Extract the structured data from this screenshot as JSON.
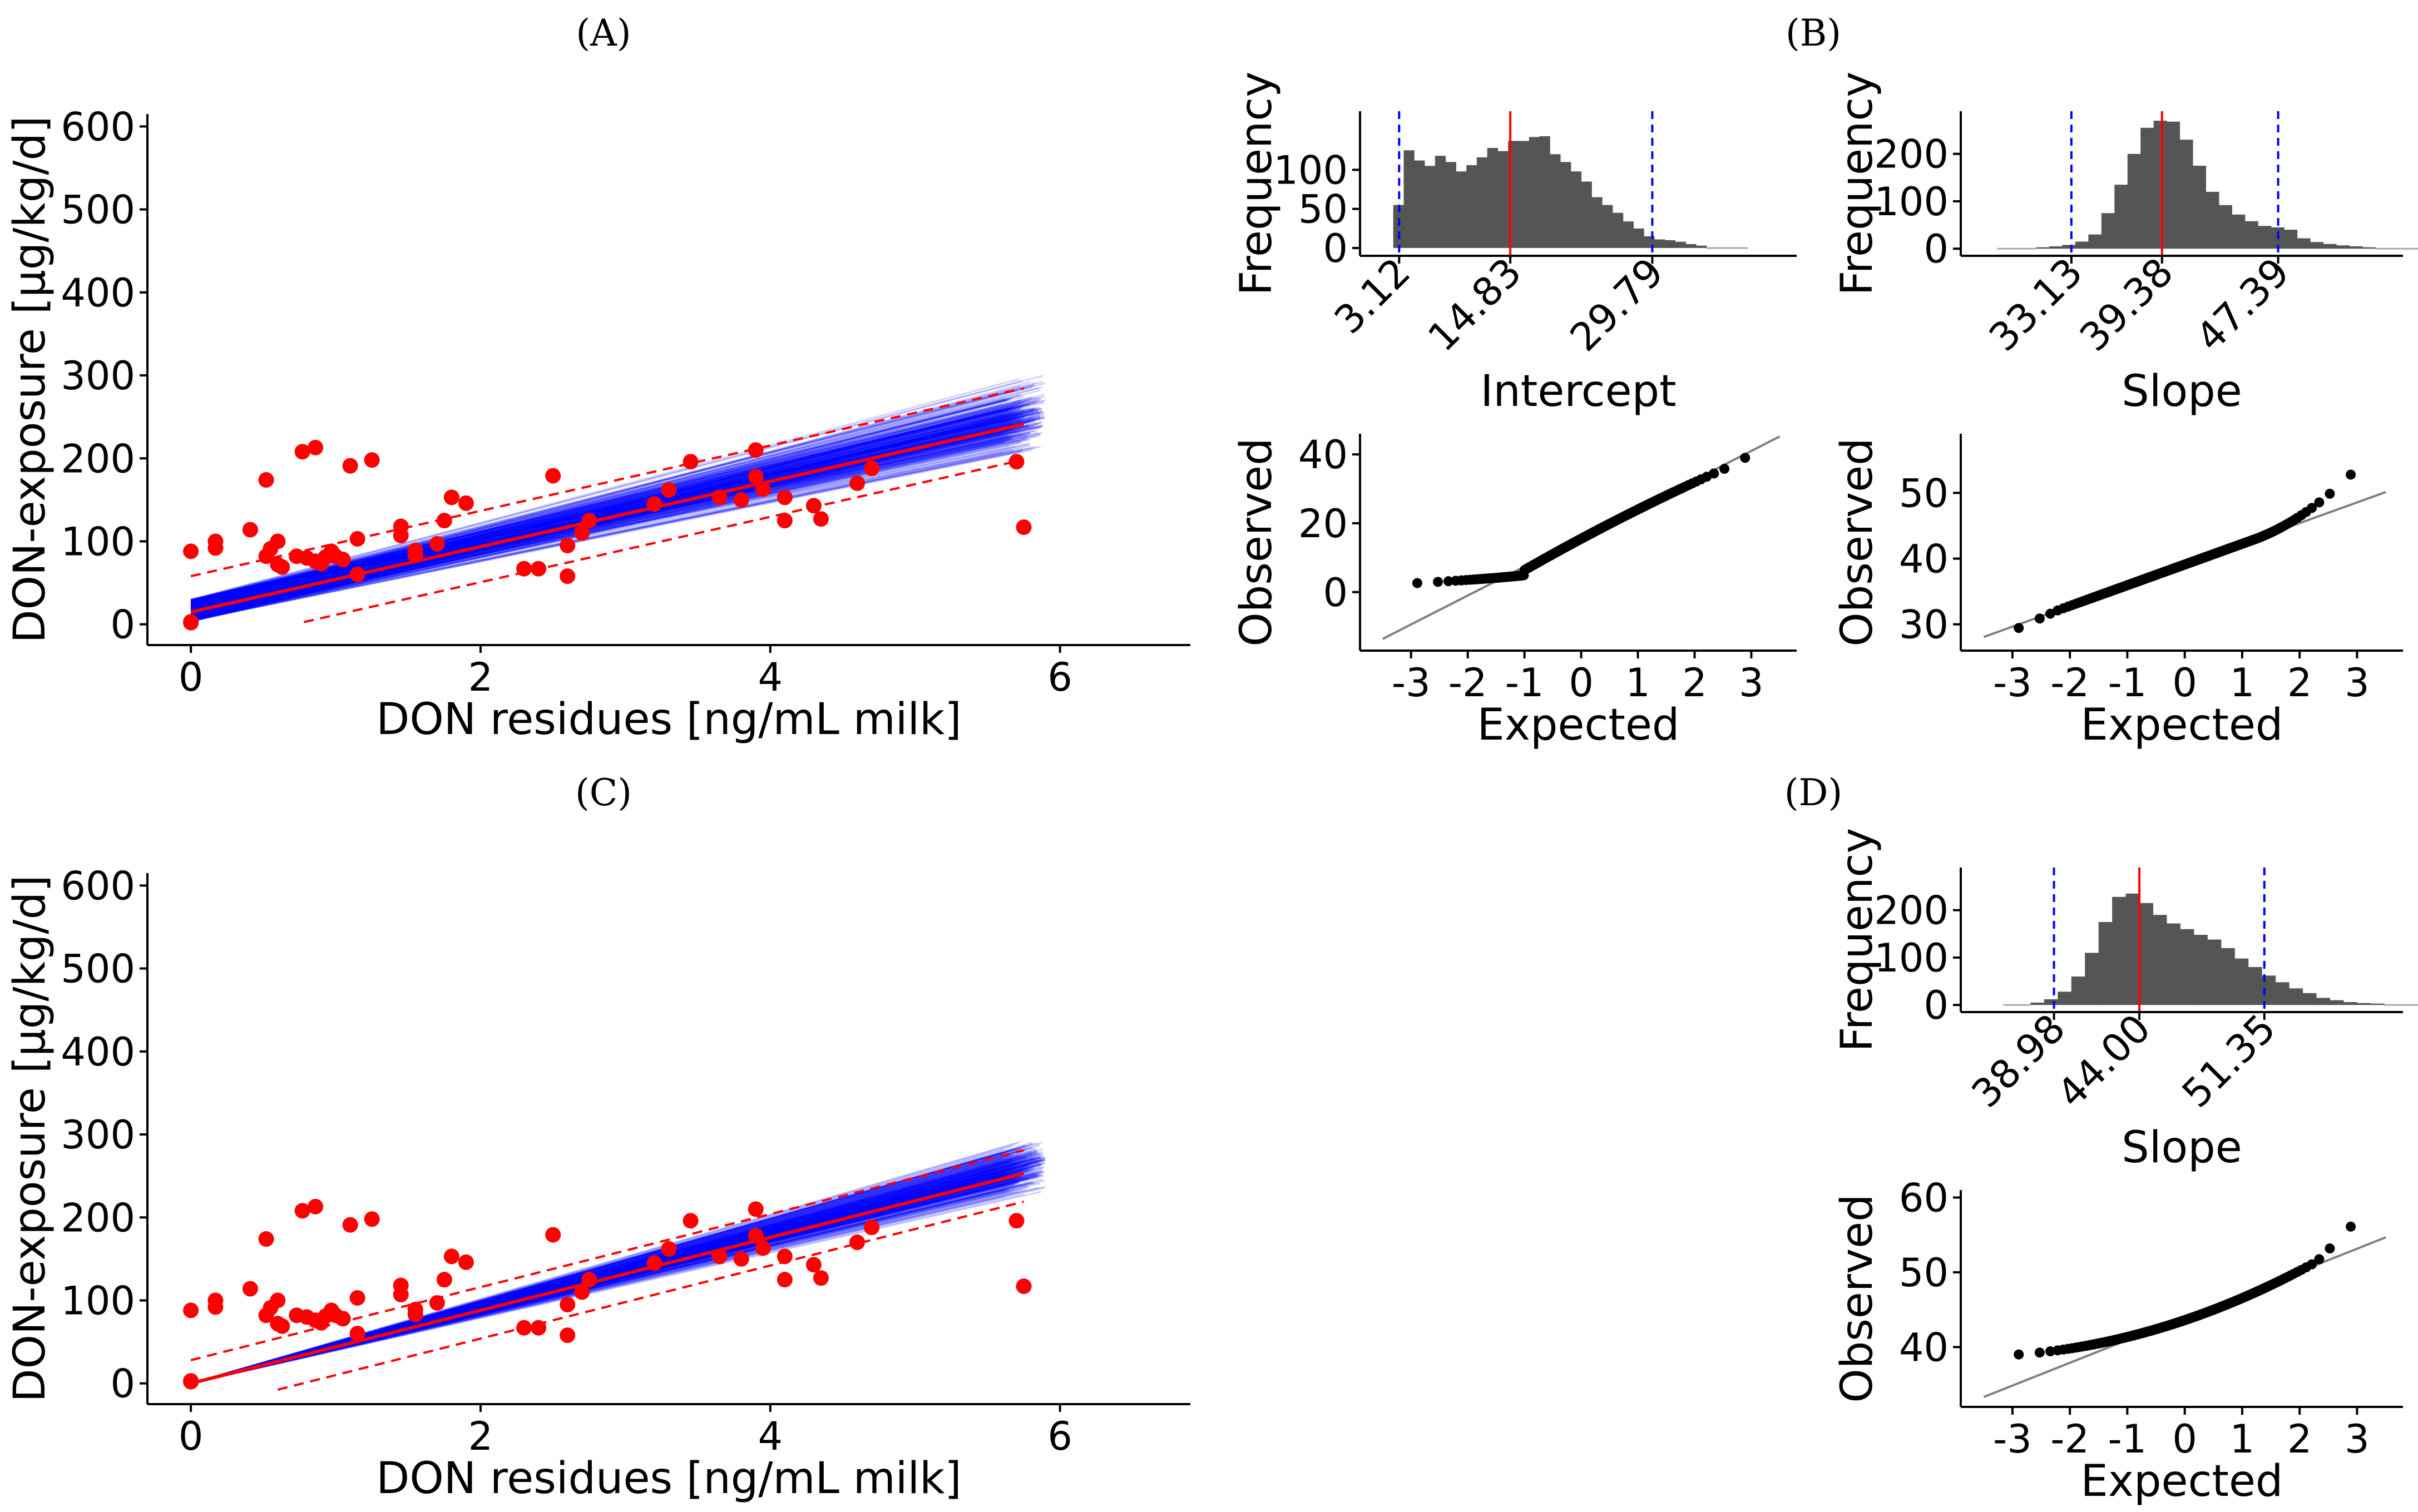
{
  "figure_labels": {
    "A": "(A)",
    "B": "(B)",
    "C": "(C)",
    "D": "(D)"
  },
  "colors": {
    "points": "#ff0000",
    "fit": "#ff0000",
    "band": "#ff0000",
    "bootstrap": "#0000ff",
    "hist_bar": "#555555",
    "median_line": "#ff0000",
    "ci_line": "#0000ff",
    "qq_points": "#000000",
    "qq_ref": "#7f7f7f"
  },
  "chart_data": [
    {
      "id": "A",
      "type": "scatter",
      "title": "(A)",
      "xlabel": "DON residues [ng/mL milk]",
      "ylabel": "DON-exposure [µg/kg/d]",
      "xlim": [
        -0.3,
        6.9
      ],
      "ylim": [
        -25,
        615
      ],
      "xticks": [
        "0",
        "2",
        "4",
        "6"
      ],
      "xtick_values": [
        0,
        2,
        4,
        6
      ],
      "yticks": [
        "0",
        "100",
        "200",
        "300",
        "400",
        "500",
        "600"
      ],
      "ytick_values": [
        0,
        100,
        200,
        300,
        400,
        500,
        600
      ],
      "points": [
        [
          0,
          3
        ],
        [
          0,
          2
        ],
        [
          0,
          88
        ],
        [
          0.17,
          92
        ],
        [
          0.17,
          100
        ],
        [
          0.41,
          114
        ],
        [
          0.52,
          174
        ],
        [
          0.52,
          82
        ],
        [
          0.55,
          91
        ],
        [
          0.6,
          100
        ],
        [
          0.6,
          72
        ],
        [
          0.63,
          69
        ],
        [
          0.73,
          82
        ],
        [
          0.77,
          208
        ],
        [
          0.8,
          80
        ],
        [
          0.86,
          213
        ],
        [
          0.86,
          76
        ],
        [
          0.9,
          73
        ],
        [
          0.93,
          81
        ],
        [
          0.97,
          88
        ],
        [
          1.0,
          82
        ],
        [
          1.05,
          78
        ],
        [
          1.1,
          191
        ],
        [
          1.15,
          103
        ],
        [
          1.15,
          60
        ],
        [
          1.25,
          198
        ],
        [
          1.45,
          118
        ],
        [
          1.45,
          107
        ],
        [
          1.55,
          89
        ],
        [
          1.55,
          83
        ],
        [
          1.7,
          97
        ],
        [
          1.75,
          125
        ],
        [
          1.8,
          153
        ],
        [
          1.9,
          146
        ],
        [
          2.3,
          67
        ],
        [
          2.4,
          67
        ],
        [
          2.5,
          179
        ],
        [
          2.6,
          58
        ],
        [
          2.6,
          95
        ],
        [
          2.7,
          110
        ],
        [
          2.75,
          125
        ],
        [
          3.2,
          145
        ],
        [
          3.3,
          162
        ],
        [
          3.45,
          196
        ],
        [
          3.65,
          153
        ],
        [
          3.8,
          150
        ],
        [
          3.9,
          178
        ],
        [
          3.9,
          210
        ],
        [
          3.95,
          163
        ],
        [
          4.1,
          153
        ],
        [
          4.1,
          125
        ],
        [
          4.3,
          143
        ],
        [
          4.35,
          127
        ],
        [
          4.6,
          170
        ],
        [
          4.7,
          188
        ],
        [
          5.7,
          196
        ],
        [
          5.75,
          117
        ]
      ],
      "fit": {
        "intercept": 14.83,
        "slope": 39.38
      },
      "band": {
        "lower_intercept": -28,
        "upper_intercept": 58,
        "lower_x0": 0.78
      },
      "bootstrap": {
        "intercept_range": [
          3.12,
          29.79
        ],
        "slope_range": [
          33.13,
          47.39
        ]
      }
    },
    {
      "id": "B-hist-intercept",
      "type": "bar",
      "xlabel": "Intercept",
      "ylabel": "Frequency",
      "xlim": [
        -1,
        45
      ],
      "ylim": [
        -10,
        175
      ],
      "xticks": [
        "3.12",
        "14.83",
        "29.79"
      ],
      "xtick_values": [
        3.12,
        14.83,
        29.79
      ],
      "yticks": [
        "0",
        "50",
        "100"
      ],
      "ytick_values": [
        0,
        50,
        100
      ],
      "bin_start": 2.5,
      "bin_width": 1.1,
      "values": [
        55,
        125,
        112,
        105,
        118,
        110,
        98,
        106,
        116,
        128,
        124,
        137,
        137,
        142,
        143,
        120,
        110,
        98,
        85,
        65,
        55,
        45,
        34,
        25,
        15,
        11,
        10,
        8,
        5,
        3,
        2,
        1,
        1,
        1,
        0,
        0,
        0,
        0
      ],
      "median": 14.83,
      "ci": [
        3.12,
        29.79
      ]
    },
    {
      "id": "B-hist-slope",
      "type": "bar",
      "xlabel": "Slope",
      "ylabel": "Frequency",
      "xlim": [
        25.5,
        56
      ],
      "ylim": [
        -15,
        290
      ],
      "xticks": [
        "33.13",
        "39.38",
        "47.39"
      ],
      "xtick_values": [
        33.13,
        39.38,
        47.39
      ],
      "yticks": [
        "0",
        "100",
        "200"
      ],
      "ytick_values": [
        0,
        100,
        200
      ],
      "bin_start": 28,
      "bin_width": 0.9,
      "values": [
        1,
        1,
        2,
        3,
        5,
        8,
        15,
        30,
        75,
        135,
        200,
        255,
        270,
        268,
        230,
        175,
        120,
        92,
        72,
        58,
        48,
        45,
        40,
        22,
        14,
        10,
        7,
        5,
        3,
        2,
        2,
        1,
        1
      ],
      "median": 39.38,
      "ci": [
        33.13,
        47.39
      ]
    },
    {
      "id": "B-qq-intercept",
      "type": "scatter",
      "xlabel": "Expected",
      "ylabel": "Observed",
      "xlim": [
        -3.9,
        3.8
      ],
      "ylim": [
        -17,
        46
      ],
      "xticks": [
        "-3",
        "-2",
        "-1",
        "0",
        "1",
        "2",
        "3"
      ],
      "xtick_values": [
        -3,
        -2,
        -1,
        0,
        1,
        2,
        3
      ],
      "yticks": [
        "0",
        "20",
        "40"
      ],
      "ytick_values": [
        0,
        20,
        40
      ],
      "reference_line": {
        "intercept": 15.8,
        "slope": 8.4,
        "x_range": [
          -3.5,
          3.5
        ]
      }
    },
    {
      "id": "B-qq-slope",
      "type": "scatter",
      "xlabel": "Expected",
      "ylabel": "Observed",
      "xlim": [
        -3.9,
        3.8
      ],
      "ylim": [
        26,
        59
      ],
      "xticks": [
        "-3",
        "-2",
        "-1",
        "0",
        "1",
        "2",
        "3"
      ],
      "xtick_values": [
        -3,
        -2,
        -1,
        0,
        1,
        2,
        3
      ],
      "yticks": [
        "30",
        "40",
        "50"
      ],
      "ytick_values": [
        30,
        40,
        50
      ],
      "reference_line": {
        "intercept": 39.1,
        "slope": 3.15,
        "x_range": [
          -3.5,
          3.5
        ]
      }
    },
    {
      "id": "C",
      "type": "scatter",
      "title": "(C)",
      "xlabel": "DON residues [ng/mL milk]",
      "ylabel": "DON-exposure [µg/kg/d]",
      "xlim": [
        -0.3,
        6.9
      ],
      "ylim": [
        -25,
        615
      ],
      "xticks": [
        "0",
        "2",
        "4",
        "6"
      ],
      "xtick_values": [
        0,
        2,
        4,
        6
      ],
      "yticks": [
        "0",
        "100",
        "200",
        "300",
        "400",
        "500",
        "600"
      ],
      "ytick_values": [
        0,
        100,
        200,
        300,
        400,
        500,
        600
      ],
      "points": [
        [
          0,
          3
        ],
        [
          0,
          2
        ],
        [
          0,
          88
        ],
        [
          0.17,
          92
        ],
        [
          0.17,
          100
        ],
        [
          0.41,
          114
        ],
        [
          0.52,
          174
        ],
        [
          0.52,
          82
        ],
        [
          0.55,
          91
        ],
        [
          0.6,
          100
        ],
        [
          0.6,
          72
        ],
        [
          0.63,
          69
        ],
        [
          0.73,
          82
        ],
        [
          0.77,
          208
        ],
        [
          0.8,
          80
        ],
        [
          0.86,
          213
        ],
        [
          0.86,
          76
        ],
        [
          0.9,
          73
        ],
        [
          0.93,
          81
        ],
        [
          0.97,
          88
        ],
        [
          1.0,
          82
        ],
        [
          1.05,
          78
        ],
        [
          1.1,
          191
        ],
        [
          1.15,
          103
        ],
        [
          1.15,
          60
        ],
        [
          1.25,
          198
        ],
        [
          1.45,
          118
        ],
        [
          1.45,
          107
        ],
        [
          1.55,
          89
        ],
        [
          1.55,
          83
        ],
        [
          1.7,
          97
        ],
        [
          1.75,
          125
        ],
        [
          1.8,
          153
        ],
        [
          1.9,
          146
        ],
        [
          2.3,
          67
        ],
        [
          2.4,
          67
        ],
        [
          2.5,
          179
        ],
        [
          2.6,
          58
        ],
        [
          2.6,
          95
        ],
        [
          2.7,
          110
        ],
        [
          2.75,
          125
        ],
        [
          3.2,
          145
        ],
        [
          3.3,
          162
        ],
        [
          3.45,
          196
        ],
        [
          3.65,
          153
        ],
        [
          3.8,
          150
        ],
        [
          3.9,
          178
        ],
        [
          3.9,
          210
        ],
        [
          3.95,
          163
        ],
        [
          4.1,
          153
        ],
        [
          4.1,
          125
        ],
        [
          4.3,
          143
        ],
        [
          4.35,
          127
        ],
        [
          4.6,
          170
        ],
        [
          4.7,
          188
        ],
        [
          5.7,
          196
        ],
        [
          5.75,
          117
        ]
      ],
      "fit": {
        "intercept": 0,
        "slope": 44.0
      },
      "band": {
        "lower_intercept": -34,
        "upper_intercept": 28,
        "lower_x0": 0.6
      },
      "bootstrap": {
        "intercept_range": [
          0,
          0
        ],
        "slope_range": [
          38.98,
          51.35
        ]
      }
    },
    {
      "id": "D-hist-slope",
      "type": "bar",
      "xlabel": "Slope",
      "ylabel": "Frequency",
      "xlim": [
        33.5,
        59.5
      ],
      "ylim": [
        -15,
        290
      ],
      "xticks": [
        "38.98",
        "44.00",
        "51.35"
      ],
      "xtick_values": [
        38.98,
        44.0,
        51.35
      ],
      "yticks": [
        "0",
        "100",
        "200"
      ],
      "ytick_values": [
        0,
        100,
        200
      ],
      "bin_start": 36,
      "bin_width": 0.8,
      "values": [
        1,
        2,
        5,
        12,
        28,
        60,
        110,
        175,
        228,
        235,
        215,
        190,
        172,
        160,
        148,
        138,
        120,
        98,
        80,
        62,
        48,
        35,
        25,
        15,
        10,
        6,
        4,
        3,
        2,
        1,
        1
      ],
      "median": 44.0,
      "ci": [
        38.98,
        51.35
      ]
    },
    {
      "id": "D-qq-slope",
      "type": "scatter",
      "xlabel": "Expected",
      "ylabel": "Observed",
      "xlim": [
        -3.9,
        3.8
      ],
      "ylim": [
        32,
        61
      ],
      "xticks": [
        "-3",
        "-2",
        "-1",
        "0",
        "1",
        "2",
        "3"
      ],
      "xtick_values": [
        -3,
        -2,
        -1,
        0,
        1,
        2,
        3
      ],
      "yticks": [
        "40",
        "50",
        "60"
      ],
      "ytick_values": [
        40,
        50,
        60
      ],
      "reference_line": {
        "intercept": 44.0,
        "slope": 3.05,
        "x_range": [
          -3.5,
          3.5
        ]
      }
    }
  ]
}
